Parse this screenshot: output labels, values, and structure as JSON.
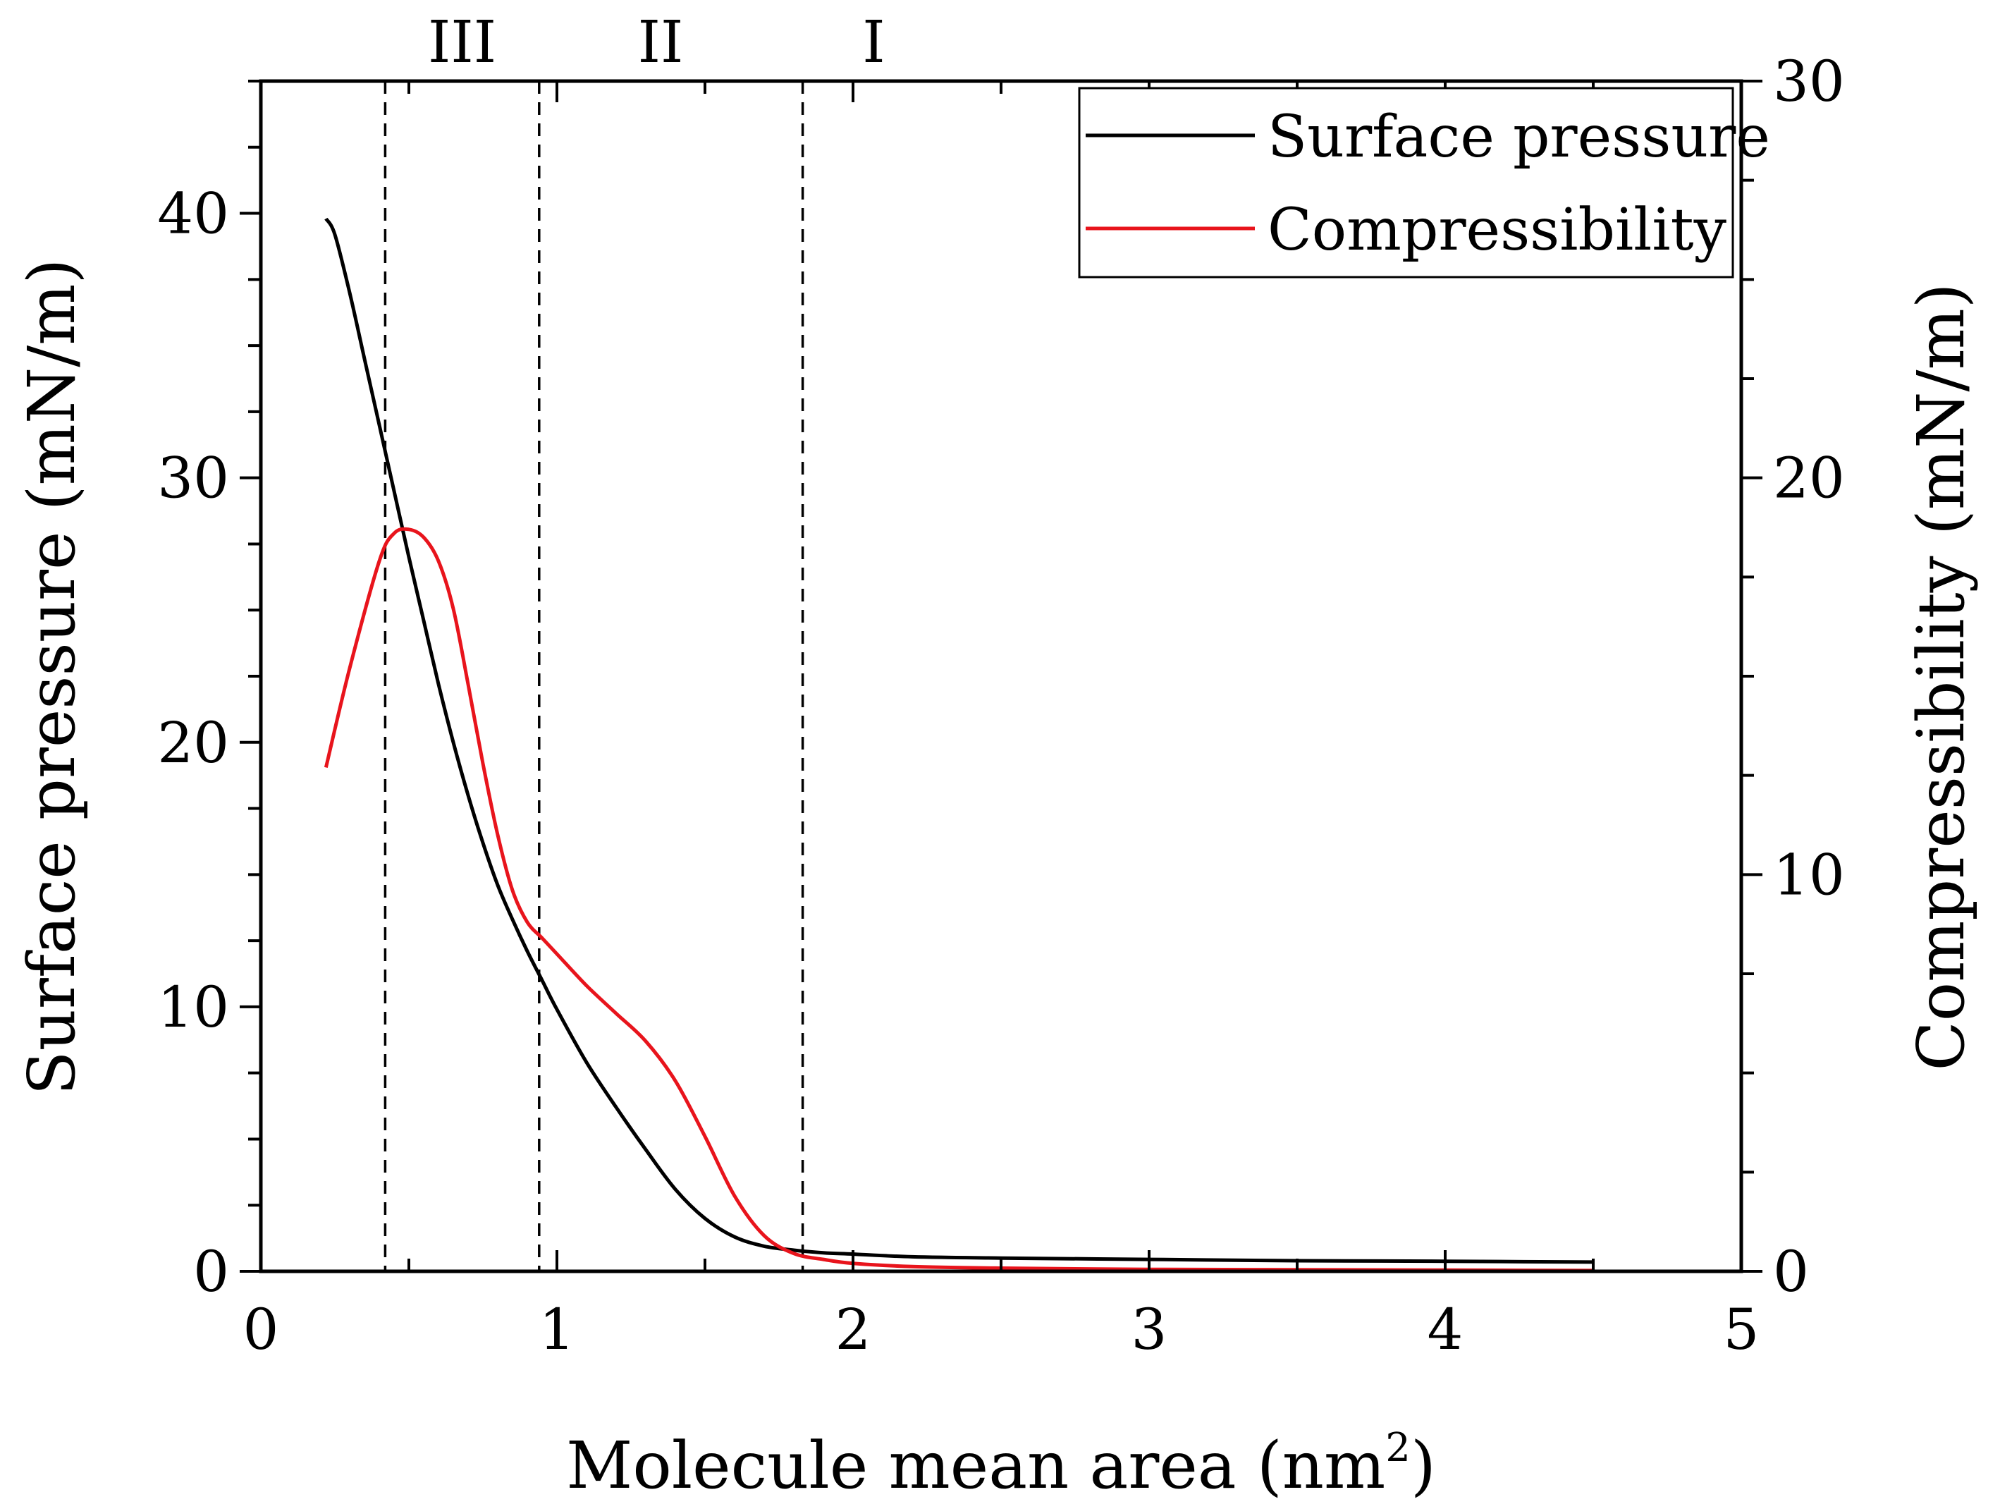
{
  "chart_data": {
    "type": "line",
    "title": "",
    "xlabel": "Molecule mean area (nm",
    "xlabel_sup": "2",
    "xlabel_close": ")",
    "ylabel_left": "Surface pressure (mN/m)",
    "ylabel_right": "Compressibility (mN/m)",
    "xlim": [
      0,
      5
    ],
    "ylim_left": [
      0,
      45
    ],
    "ylim_right": [
      0,
      30
    ],
    "x_ticks": [
      0,
      1,
      2,
      3,
      4,
      5
    ],
    "y_left_ticks": [
      0,
      10,
      20,
      30,
      40
    ],
    "y_right_ticks": [
      0,
      10,
      20,
      30
    ],
    "grid": false,
    "legend_position": "top-right",
    "regions": [
      {
        "label": "III",
        "x_center": 0.68
      },
      {
        "label": "II",
        "x_center": 1.35
      },
      {
        "label": "I",
        "x_center": 2.07
      }
    ],
    "dividers": [
      0.42,
      0.94,
      1.83
    ],
    "series": [
      {
        "name": "Surface pressure",
        "axis": "left",
        "color": "#000000",
        "x": [
          0.22,
          0.25,
          0.3,
          0.35,
          0.4,
          0.45,
          0.5,
          0.55,
          0.6,
          0.65,
          0.7,
          0.75,
          0.8,
          0.85,
          0.9,
          0.95,
          1.0,
          1.1,
          1.2,
          1.3,
          1.4,
          1.5,
          1.6,
          1.7,
          1.8,
          1.9,
          2.0,
          2.2,
          2.5,
          3.0,
          3.5,
          4.0,
          4.5
        ],
        "values": [
          39.8,
          39.2,
          37.0,
          34.5,
          32.0,
          29.5,
          27.0,
          24.6,
          22.2,
          20.0,
          18.0,
          16.2,
          14.6,
          13.3,
          12.1,
          11.0,
          9.9,
          7.9,
          6.2,
          4.6,
          3.1,
          2.0,
          1.3,
          0.95,
          0.8,
          0.7,
          0.65,
          0.55,
          0.5,
          0.45,
          0.4,
          0.38,
          0.35
        ]
      },
      {
        "name": "Compressibility",
        "axis": "right",
        "color": "#e8141c",
        "x": [
          0.22,
          0.3,
          0.4,
          0.45,
          0.5,
          0.55,
          0.6,
          0.65,
          0.7,
          0.75,
          0.8,
          0.85,
          0.9,
          0.95,
          1.0,
          1.1,
          1.2,
          1.3,
          1.4,
          1.5,
          1.6,
          1.7,
          1.8,
          1.9,
          2.0,
          2.2,
          2.5,
          3.0,
          3.5,
          4.0,
          4.5
        ],
        "values": [
          12.7,
          15.2,
          17.9,
          18.6,
          18.7,
          18.5,
          17.9,
          16.7,
          14.8,
          12.8,
          11.0,
          9.6,
          8.8,
          8.4,
          8.0,
          7.2,
          6.5,
          5.8,
          4.8,
          3.4,
          1.9,
          0.9,
          0.45,
          0.3,
          0.2,
          0.12,
          0.08,
          0.05,
          0.04,
          0.03,
          0.02
        ]
      }
    ]
  }
}
